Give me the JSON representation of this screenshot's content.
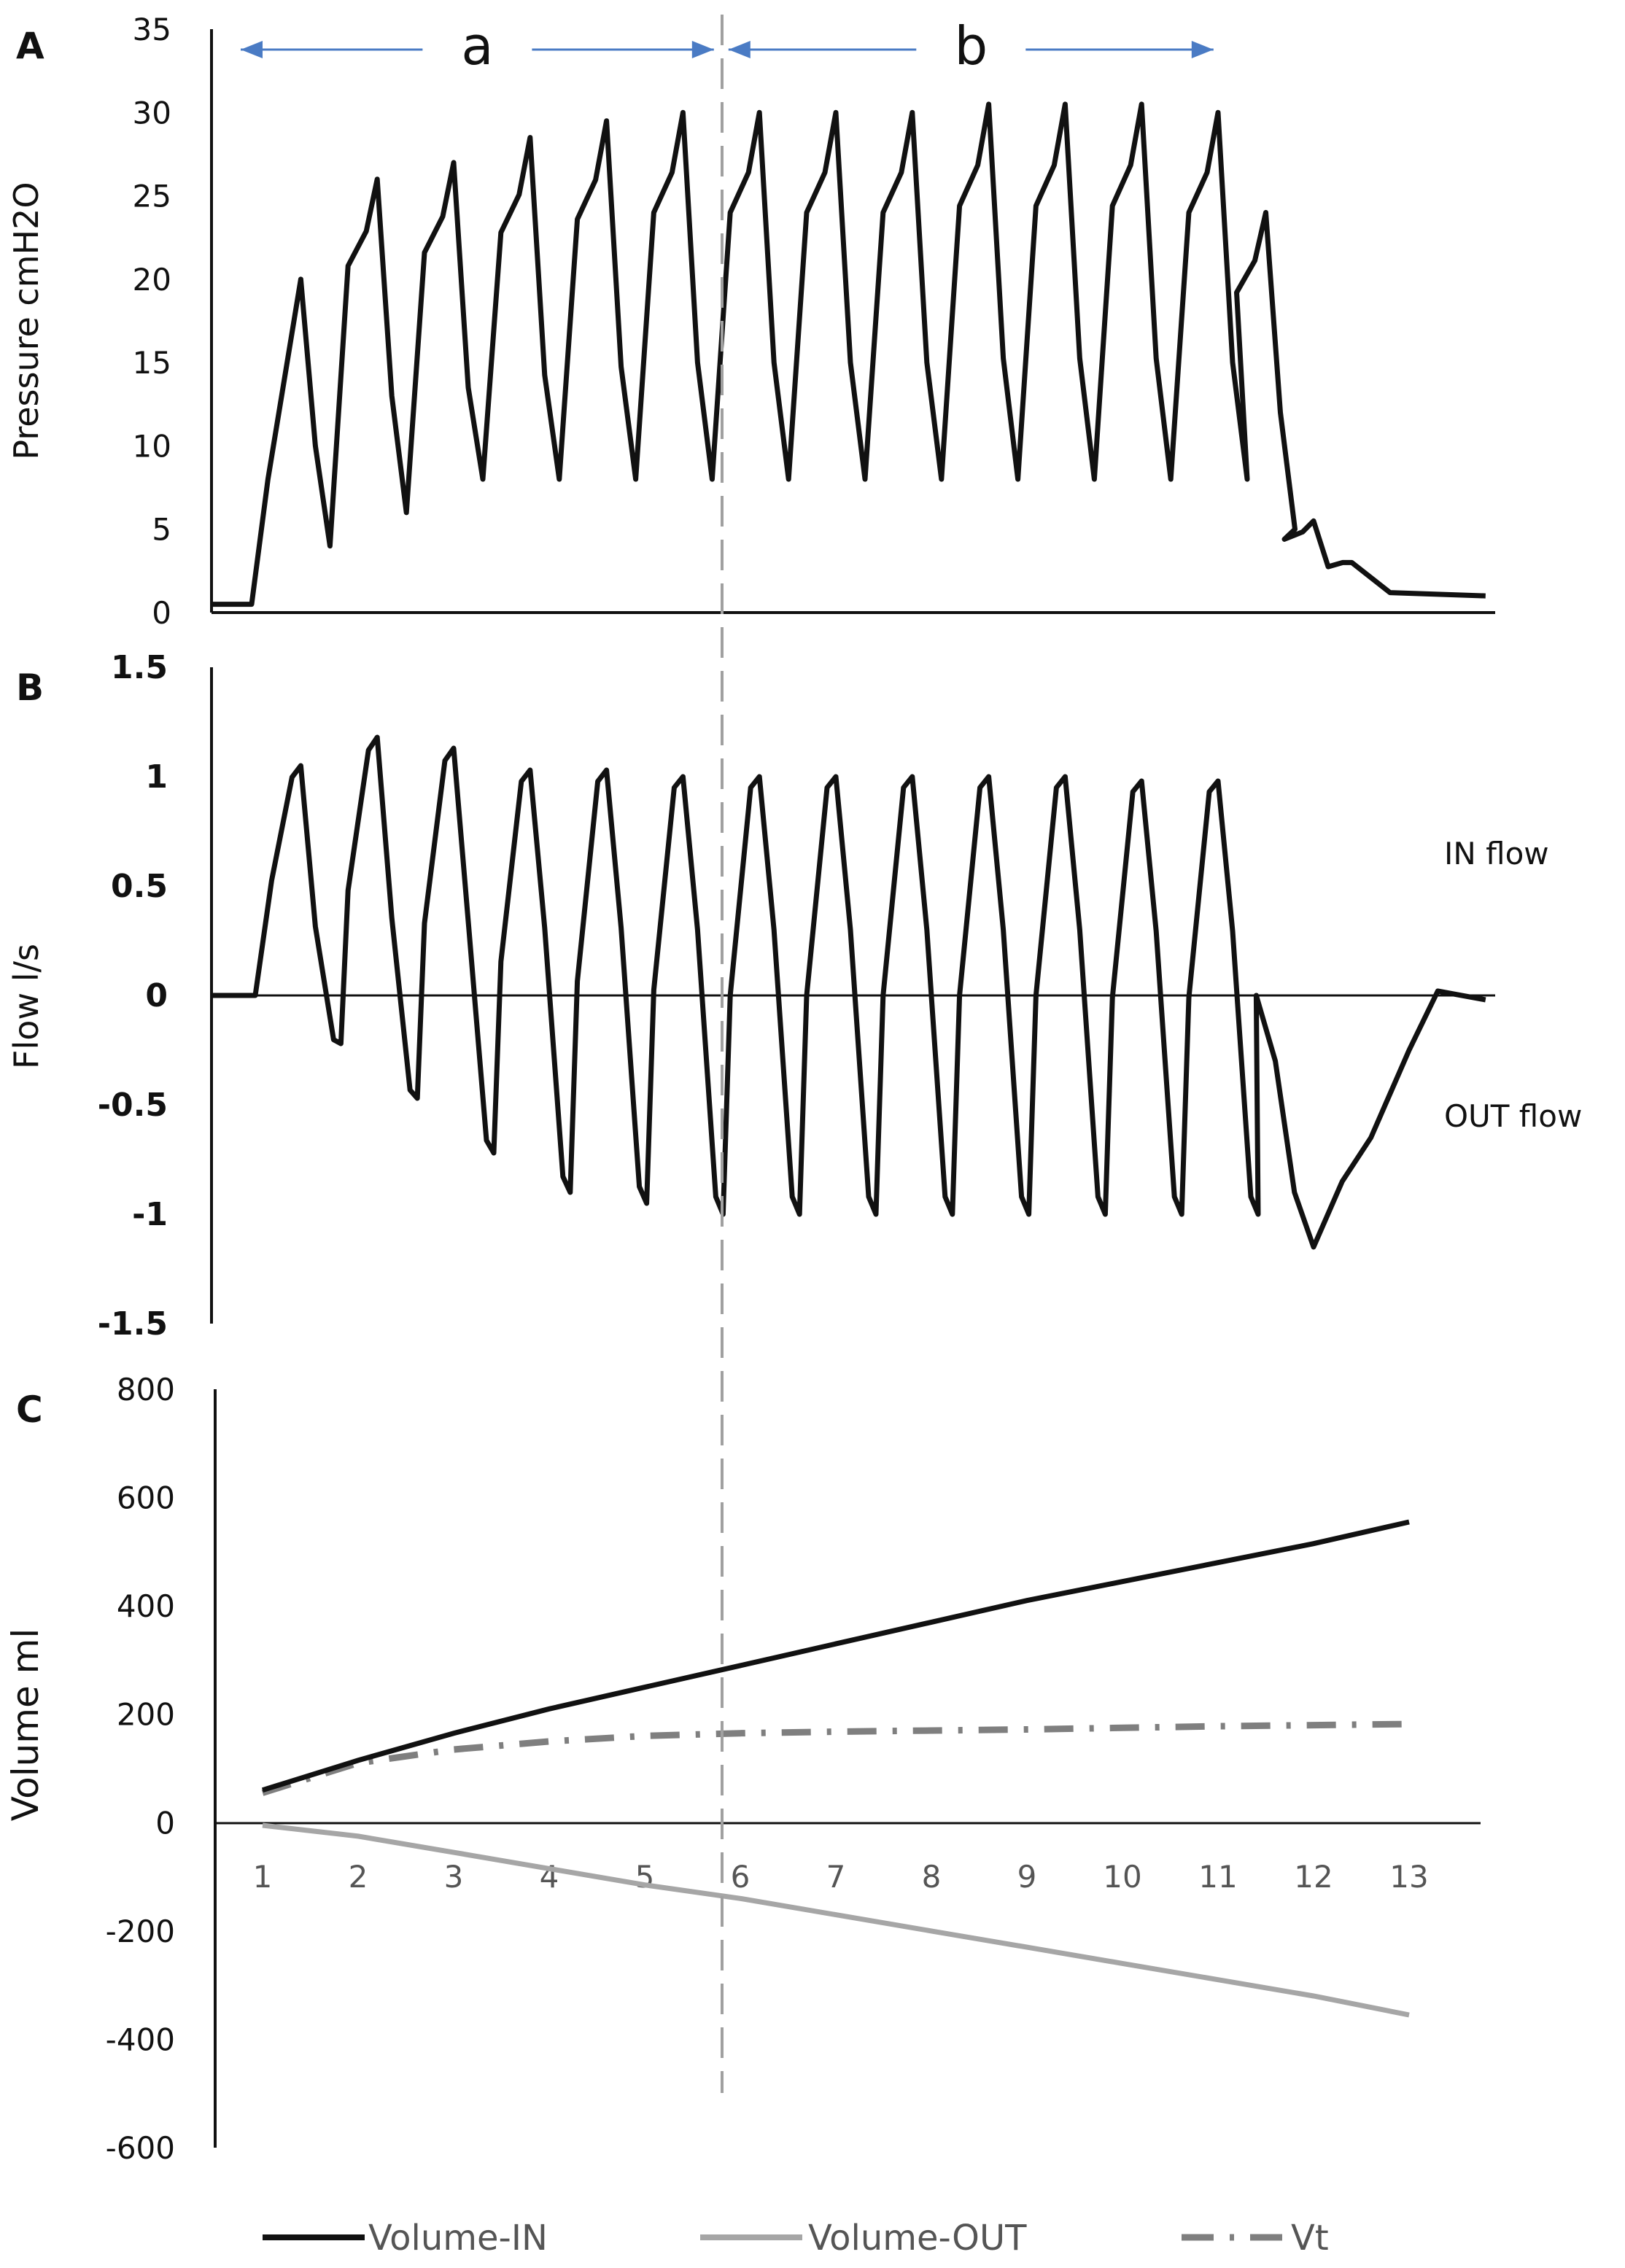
{
  "colors": {
    "main": "#111111",
    "volume_out": "#a6a6a6",
    "vt": "#7f7f7f",
    "divider": "#a0a0a0",
    "arrow": "#4a7bc4"
  },
  "chart_data": [
    {
      "type": "line",
      "panel_label": "A",
      "title": "",
      "xlabel": "",
      "ylabel": "Pressure  cmH2O",
      "ylim": [
        0,
        35
      ],
      "yticks": [
        "35",
        "30",
        "25",
        "20",
        "15",
        "10",
        "5",
        "0"
      ],
      "annotations": [
        {
          "label": "a",
          "from_breath": 1,
          "to_breath": 5.8
        },
        {
          "label": "b",
          "from_breath": 5.8,
          "to_breath": 10.8
        }
      ],
      "series": [
        {
          "name": "Pressure",
          "baseline_cmH2O": 0.5,
          "onset_breath": 1,
          "end_breath": 13.8,
          "breaths": [
            {
              "breath": 1.4,
              "peak": 20,
              "trough": 4
            },
            {
              "breath": 2.2,
              "peak": 26,
              "trough": 6
            },
            {
              "breath": 3.0,
              "peak": 27,
              "trough": 8
            },
            {
              "breath": 3.8,
              "peak": 28.5,
              "trough": 8
            },
            {
              "breath": 4.6,
              "peak": 29.5,
              "trough": 8
            },
            {
              "breath": 5.4,
              "peak": 30,
              "trough": 8
            },
            {
              "breath": 6.2,
              "peak": 30,
              "trough": 8
            },
            {
              "breath": 7.0,
              "peak": 30,
              "trough": 8
            },
            {
              "breath": 7.8,
              "peak": 30,
              "trough": 8
            },
            {
              "breath": 8.6,
              "peak": 30.5,
              "trough": 8
            },
            {
              "breath": 9.4,
              "peak": 30.5,
              "trough": 8
            },
            {
              "breath": 10.2,
              "peak": 30.5,
              "trough": 8
            },
            {
              "breath": 11.0,
              "peak": 30,
              "trough": 8
            },
            {
              "breath": 11.5,
              "peak": 24,
              "trough": 5
            },
            {
              "breath": 12.0,
              "peak": 5.5,
              "trough": 3
            }
          ]
        }
      ]
    },
    {
      "type": "line",
      "panel_label": "B",
      "title": "",
      "xlabel": "",
      "ylabel": "Flow   l/s",
      "ylim": [
        -1.5,
        1.5
      ],
      "yticks": [
        "1.5",
        "1",
        "0.5",
        "0",
        "-0.5",
        "-1",
        "-1.5"
      ],
      "annotations": [
        {
          "label": "IN flow",
          "y": 0.7
        },
        {
          "label": "OUT flow",
          "y": -0.6
        }
      ],
      "series": [
        {
          "name": "Flow",
          "onset_breath": 1,
          "breaths": [
            {
              "breath": 1.4,
              "peak": 1.05,
              "trough": -0.22
            },
            {
              "breath": 2.2,
              "peak": 1.18,
              "trough": -0.47
            },
            {
              "breath": 3.0,
              "peak": 1.13,
              "trough": -0.72
            },
            {
              "breath": 3.8,
              "peak": 1.03,
              "trough": -0.9
            },
            {
              "breath": 4.6,
              "peak": 1.03,
              "trough": -0.95
            },
            {
              "breath": 5.4,
              "peak": 1.0,
              "trough": -1.0
            },
            {
              "breath": 6.2,
              "peak": 1.0,
              "trough": -1.0
            },
            {
              "breath": 7.0,
              "peak": 1.0,
              "trough": -1.0
            },
            {
              "breath": 7.8,
              "peak": 1.0,
              "trough": -1.0
            },
            {
              "breath": 8.6,
              "peak": 1.0,
              "trough": -1.0
            },
            {
              "breath": 9.4,
              "peak": 1.0,
              "trough": -1.0
            },
            {
              "breath": 10.2,
              "peak": 0.98,
              "trough": -1.0
            },
            {
              "breath": 11.0,
              "peak": 0.98,
              "trough": -1.0
            }
          ],
          "final_expiration": [
            [
              11.4,
              0
            ],
            [
              11.6,
              -0.3
            ],
            [
              11.8,
              -0.9
            ],
            [
              12.0,
              -1.15
            ],
            [
              12.3,
              -0.85
            ],
            [
              12.6,
              -0.65
            ],
            [
              13.0,
              -0.25
            ],
            [
              13.3,
              0.02
            ],
            [
              13.8,
              -0.02
            ]
          ]
        }
      ]
    },
    {
      "type": "line",
      "panel_label": "C",
      "title": "",
      "xlabel": "",
      "ylabel": "Volume  ml",
      "ylim": [
        -600,
        800
      ],
      "yticks": [
        "800",
        "600",
        "400",
        "200",
        "0",
        "-200",
        "-400",
        "-600"
      ],
      "categories": [
        "1",
        "2",
        "3",
        "4",
        "5",
        "6",
        "7",
        "8",
        "9",
        "10",
        "11",
        "12",
        "13"
      ],
      "series": [
        {
          "name": "Volume-IN",
          "values": [
            60,
            115,
            165,
            210,
            250,
            290,
            330,
            370,
            410,
            445,
            480,
            515,
            555
          ]
        },
        {
          "name": "Volume-OUT",
          "values": [
            -5,
            -25,
            -55,
            -85,
            -115,
            -140,
            -170,
            -200,
            -230,
            -260,
            -290,
            -320,
            -355
          ]
        },
        {
          "name": "Vt",
          "values": [
            55,
            110,
            135,
            150,
            160,
            165,
            168,
            170,
            172,
            175,
            178,
            180,
            182
          ]
        }
      ],
      "legend": {
        "position": "bottom",
        "items": [
          "Volume-IN",
          "Volume-OUT",
          "Vt"
        ]
      }
    }
  ]
}
